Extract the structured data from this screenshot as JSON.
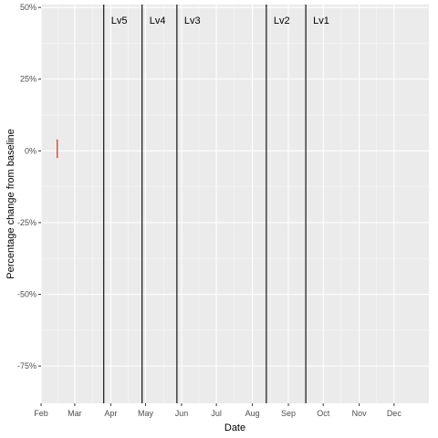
{
  "chart_data": {
    "type": "line",
    "xlabel": "Date",
    "ylabel": "Percentage change from baseline",
    "x_type": "date",
    "xlim": [
      "2020-02-01",
      "2020-12-31"
    ],
    "ylim": [
      -88,
      51
    ],
    "x_ticks": [
      {
        "date": "2020-02-01",
        "label": "Feb"
      },
      {
        "date": "2020-03-01",
        "label": "Mar"
      },
      {
        "date": "2020-04-01",
        "label": "Apr"
      },
      {
        "date": "2020-05-01",
        "label": "May"
      },
      {
        "date": "2020-06-01",
        "label": "Jun"
      },
      {
        "date": "2020-07-01",
        "label": "Jul"
      },
      {
        "date": "2020-08-01",
        "label": "Aug"
      },
      {
        "date": "2020-09-01",
        "label": "Sep"
      },
      {
        "date": "2020-10-01",
        "label": "Oct"
      },
      {
        "date": "2020-11-01",
        "label": "Nov"
      },
      {
        "date": "2020-12-01",
        "label": "Dec"
      }
    ],
    "y_ticks": [
      {
        "value": 50,
        "label": "50%"
      },
      {
        "value": 25,
        "label": "25%"
      },
      {
        "value": 0,
        "label": "0%"
      },
      {
        "value": -25,
        "label": "-25%"
      },
      {
        "value": -50,
        "label": "-50%"
      },
      {
        "value": -75,
        "label": "-75%"
      }
    ],
    "grid": true,
    "series": [
      {
        "color": "#cc0000",
        "points": [
          {
            "x": "2020-02-15",
            "y": 4
          },
          {
            "x": "2020-02-15",
            "y": -2.5
          }
        ]
      }
    ],
    "vlines": [
      {
        "date": "2020-03-26",
        "label": "Lv5"
      },
      {
        "date": "2020-04-28",
        "label": "Lv4"
      },
      {
        "date": "2020-05-28",
        "label": "Lv3"
      },
      {
        "date": "2020-08-13",
        "label": "Lv2"
      },
      {
        "date": "2020-09-16",
        "label": "Lv1"
      }
    ]
  }
}
